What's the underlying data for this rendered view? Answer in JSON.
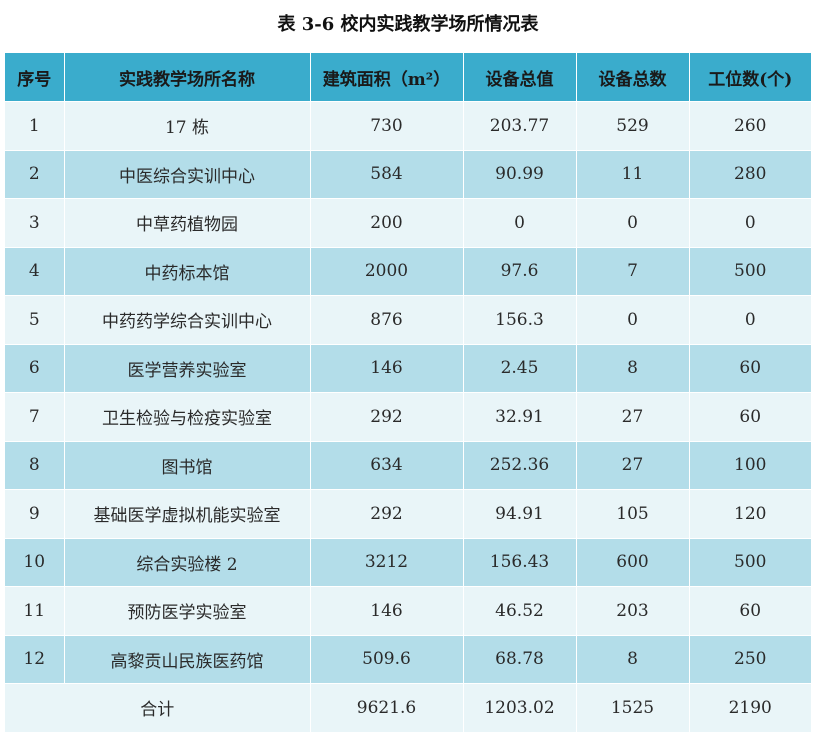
{
  "title": "表 3-6  校内实践教学场所情况表",
  "headers": [
    "序号",
    "实践教学场所名称",
    "建筑面积（m²）",
    "设备总值",
    "设备总数",
    "工位数(个)"
  ],
  "rows": [
    [
      "1",
      "17 栋",
      "730",
      "203.77",
      "529",
      "260"
    ],
    [
      "2",
      "中医综合实训中心",
      "584",
      "90.99",
      "11",
      "280"
    ],
    [
      "3",
      "中草药植物园",
      "200",
      "0",
      "0",
      "0"
    ],
    [
      "4",
      "中药标本馆",
      "2000",
      "97.6",
      "7",
      "500"
    ],
    [
      "5",
      "中药药学综合实训中心",
      "876",
      "156.3",
      "0",
      "0"
    ],
    [
      "6",
      "医学营养实验室",
      "146",
      "2.45",
      "8",
      "60"
    ],
    [
      "7",
      "卫生检验与检疫实验室",
      "292",
      "32.91",
      "27",
      "60"
    ],
    [
      "8",
      "图书馆",
      "634",
      "252.36",
      "27",
      "100"
    ],
    [
      "9",
      "基础医学虚拟机能实验室",
      "292",
      "94.91",
      "105",
      "120"
    ],
    [
      "10",
      "综合实验楼 2",
      "3212",
      "156.43",
      "600",
      "500"
    ],
    [
      "11",
      "预防医学实验室",
      "146",
      "46.52",
      "203",
      "60"
    ],
    [
      "12",
      "高黎贡山民族医药馆",
      "509.6",
      "68.78",
      "8",
      "250"
    ]
  ],
  "total": {
    "label": "合计",
    "values": [
      "9621.6",
      "1203.02",
      "1525",
      "2190"
    ]
  },
  "colors": {
    "header": "#3aaccc",
    "row_light": "#e9f5f8",
    "row_dark": "#b3dde9"
  }
}
